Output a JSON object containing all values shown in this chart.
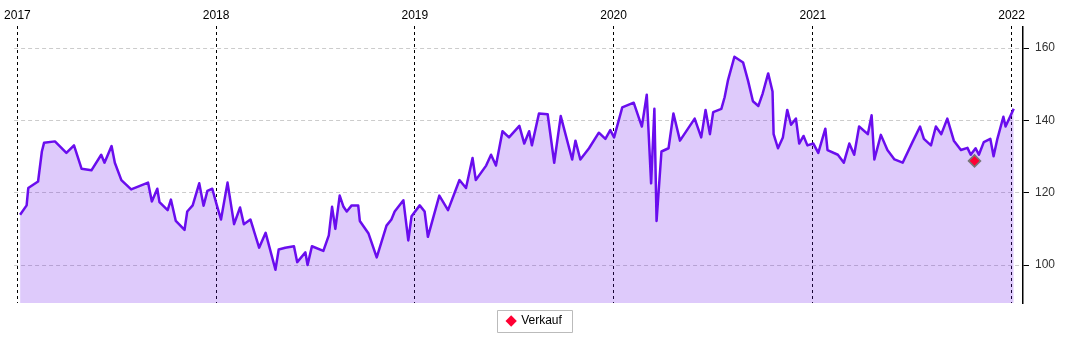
{
  "chart_data": {
    "type": "area",
    "x": [
      "2017-01-06",
      "2017-01-18",
      "2017-01-21",
      "2017-02-08",
      "2017-02-15",
      "2017-02-19",
      "2017-03-11",
      "2017-04-01",
      "2017-04-15",
      "2017-04-29",
      "2017-05-17",
      "2017-06-04",
      "2017-06-10",
      "2017-06-23",
      "2017-06-29",
      "2017-07-11",
      "2017-07-29",
      "2017-08-29",
      "2017-09-05",
      "2017-09-15",
      "2017-09-19",
      "2017-10-04",
      "2017-10-10",
      "2017-10-19",
      "2017-11-04",
      "2017-11-09",
      "2017-11-19",
      "2017-12-01",
      "2017-12-09",
      "2017-12-16",
      "2017-12-25",
      "2018-01-02",
      "2018-01-10",
      "2018-01-22",
      "2018-02-03",
      "2018-02-14",
      "2018-02-21",
      "2018-03-05",
      "2018-03-21",
      "2018-04-02",
      "2018-04-20",
      "2018-04-26",
      "2018-05-08",
      "2018-05-24",
      "2018-05-30",
      "2018-06-14",
      "2018-06-18",
      "2018-06-26",
      "2018-07-17",
      "2018-07-27",
      "2018-08-02",
      "2018-08-08",
      "2018-08-16",
      "2018-08-23",
      "2018-08-29",
      "2018-09-07",
      "2018-09-19",
      "2018-09-22",
      "2018-10-08",
      "2018-10-23",
      "2018-11-10",
      "2018-11-19",
      "2018-11-25",
      "2018-12-11",
      "2018-12-20",
      "2018-12-26",
      "2019-01-10",
      "2019-01-19",
      "2019-01-25",
      "2019-02-15",
      "2019-03-03",
      "2019-03-24",
      "2019-04-05",
      "2019-04-17",
      "2019-04-23",
      "2019-05-12",
      "2019-05-21",
      "2019-05-30",
      "2019-06-11",
      "2019-06-23",
      "2019-07-12",
      "2019-07-21",
      "2019-07-30",
      "2019-08-04",
      "2019-08-17",
      "2019-09-02",
      "2019-09-14",
      "2019-09-26",
      "2019-10-17",
      "2019-10-23",
      "2019-11-01",
      "2019-11-17",
      "2019-12-05",
      "2019-12-17",
      "2019-12-26",
      "2020-01-02",
      "2020-01-17",
      "2020-02-07",
      "2020-02-22",
      "2020-03-02",
      "2020-03-10",
      "2020-03-16",
      "2020-03-20",
      "2020-03-29",
      "2020-04-11",
      "2020-04-20",
      "2020-05-02",
      "2020-05-29",
      "2020-06-10",
      "2020-06-18",
      "2020-06-26",
      "2020-07-02",
      "2020-07-17",
      "2020-07-23",
      "2020-07-29",
      "2020-08-10",
      "2020-08-26",
      "2020-09-04",
      "2020-09-13",
      "2020-09-23",
      "2020-10-01",
      "2020-10-11",
      "2020-10-19",
      "2020-10-21",
      "2020-10-29",
      "2020-11-07",
      "2020-11-15",
      "2020-11-22",
      "2020-12-01",
      "2020-12-07",
      "2020-12-15",
      "2020-12-22",
      "2021-01-02",
      "2021-01-11",
      "2021-01-24",
      "2021-01-28",
      "2021-02-16",
      "2021-02-27",
      "2021-03-09",
      "2021-03-18",
      "2021-03-27",
      "2021-04-12",
      "2021-04-19",
      "2021-04-24",
      "2021-05-06",
      "2021-05-18",
      "2021-05-31",
      "2021-06-15",
      "2021-07-03",
      "2021-07-17",
      "2021-07-24",
      "2021-08-06",
      "2021-08-15",
      "2021-08-25",
      "2021-09-05",
      "2021-09-17",
      "2021-09-30",
      "2021-10-12",
      "2021-10-18",
      "2021-10-27",
      "2021-11-02",
      "2021-11-11",
      "2021-11-23",
      "2021-11-29",
      "2021-12-06",
      "2021-12-17",
      "2021-12-21",
      "2022-01-05"
    ],
    "series": [
      {
        "color": "#6a0dee",
        "values": [
          113.9,
          116.5,
          121.3,
          123.1,
          131.4,
          133.8,
          134.2,
          131.0,
          133.1,
          126.6,
          126.2,
          130.5,
          128.3,
          132.9,
          128.3,
          123.5,
          120.9,
          122.8,
          117.6,
          121.1,
          117.4,
          115.2,
          118.1,
          112.2,
          109.7,
          114.8,
          116.5,
          122.6,
          116.4,
          120.5,
          121.1,
          116.7,
          112.6,
          122.8,
          111.3,
          115.9,
          111.3,
          112.6,
          104.8,
          108.9,
          98.7,
          104.3,
          104.8,
          105.2,
          100.8,
          103.5,
          100.0,
          105.2,
          103.9,
          108.2,
          116.1,
          110.0,
          119.2,
          116.1,
          114.8,
          116.5,
          116.5,
          112.2,
          108.7,
          102.1,
          110.9,
          112.6,
          114.8,
          117.9,
          106.8,
          113.5,
          116.5,
          114.8,
          107.8,
          119.2,
          115.2,
          123.5,
          121.3,
          129.6,
          123.5,
          127.5,
          130.5,
          127.5,
          137.0,
          135.3,
          138.5,
          133.6,
          137.0,
          133.1,
          141.9,
          141.7,
          128.3,
          141.2,
          129.2,
          134.4,
          129.2,
          132.3,
          136.6,
          134.9,
          137.3,
          135.3,
          143.6,
          144.9,
          138.3,
          147.1,
          122.6,
          143.2,
          112.2,
          131.4,
          132.3,
          141.9,
          134.4,
          140.5,
          135.3,
          142.9,
          136.2,
          142.3,
          143.2,
          146.4,
          151.0,
          157.6,
          156.0,
          151.0,
          145.3,
          144.0,
          147.5,
          153.0,
          148.0,
          136.2,
          132.3,
          135.3,
          142.9,
          138.8,
          140.5,
          133.6,
          135.7,
          133.1,
          133.6,
          131.0,
          137.7,
          131.8,
          130.5,
          128.3,
          133.6,
          130.5,
          138.3,
          136.2,
          141.4,
          129.2,
          136.0,
          131.8,
          129.2,
          128.3,
          134.0,
          138.3,
          134.9,
          133.1,
          138.3,
          136.2,
          140.5,
          134.4,
          131.8,
          132.4,
          130.5,
          132.3,
          130.5,
          134.0,
          134.9,
          130.1,
          134.9,
          141.0,
          138.3,
          143.2
        ]
      },
      {
        "type": "scatter",
        "name": "Verkauf",
        "color": "#ff0033",
        "marker": "diamond",
        "x": [
          "2021-10-25"
        ],
        "values": [
          128.8
        ]
      }
    ],
    "xlim": [
      "2016-12-26",
      "2022-01-22"
    ],
    "xticks": [
      "2017",
      "2018",
      "2019",
      "2020",
      "2021",
      "2022"
    ],
    "ylim": [
      89.5,
      166
    ],
    "yticks": [
      100,
      120,
      140,
      160
    ],
    "grid": true,
    "legend": "bottom"
  }
}
